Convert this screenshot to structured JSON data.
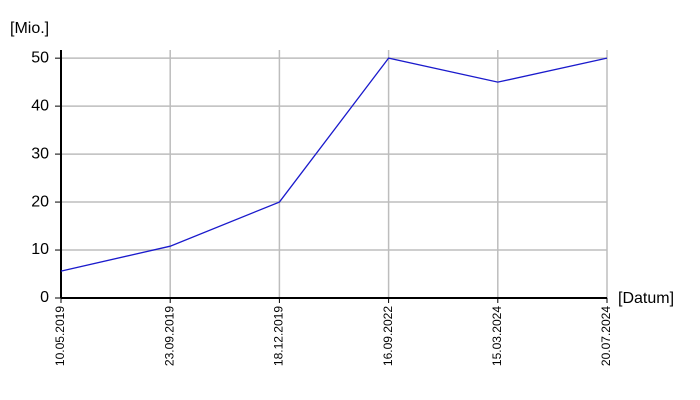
{
  "chart_data": {
    "type": "line",
    "y_label": "[Mio.]",
    "x_label": "[Datum]",
    "categories": [
      "10.05.2019",
      "23.09.2019",
      "18.12.2019",
      "16.09.2022",
      "15.03.2024",
      "20.07.2024"
    ],
    "values": [
      5.6,
      10.8,
      20,
      50,
      45,
      50
    ],
    "color": "#1a1acc",
    "ylim": [
      0,
      51.7
    ],
    "yticks": [
      0,
      10,
      20,
      30,
      40,
      50
    ],
    "grid": true
  }
}
